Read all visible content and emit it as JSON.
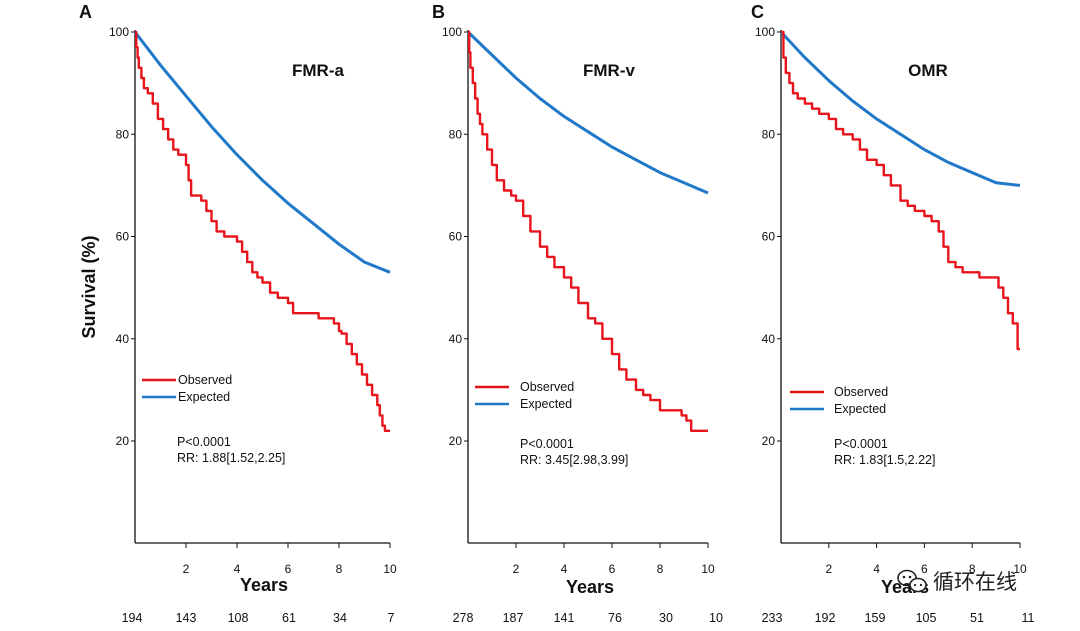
{
  "colors": {
    "observed": "#e8141c",
    "expected": "#1f78c8",
    "axis": "#111111"
  },
  "figure": {
    "y_axis_label": "Survival (%)",
    "watermark": "循环在线"
  },
  "chart_data": [
    {
      "type": "line",
      "panel_letter": "A",
      "title": "FMR-a",
      "xlabel": "Years",
      "ylabel": "Survival (%)",
      "xlim": [
        0,
        10
      ],
      "ylim": [
        0,
        100
      ],
      "x_ticks": [
        2,
        4,
        6,
        8,
        10
      ],
      "y_ticks": [
        20,
        40,
        60,
        80,
        100
      ],
      "legend": [
        "Observed",
        "Expected"
      ],
      "p_value": "P<0.0001",
      "rr": "RR: 1.88[1.52,2.25]",
      "at_risk": [
        "194",
        "143",
        "108",
        "61",
        "34",
        "7"
      ],
      "series": [
        {
          "name": "Observed",
          "x": [
            0,
            0.05,
            0.1,
            0.15,
            0.25,
            0.35,
            0.5,
            0.7,
            0.9,
            1.1,
            1.3,
            1.5,
            1.7,
            2.0,
            2.1,
            2.2,
            2.6,
            2.8,
            3.0,
            3.2,
            3.5,
            3.8,
            4.0,
            4.2,
            4.4,
            4.6,
            4.8,
            5.0,
            5.3,
            5.6,
            6.0,
            6.2,
            6.6,
            7.0,
            7.2,
            7.5,
            7.8,
            8.0,
            8.1,
            8.3,
            8.5,
            8.7,
            8.9,
            9.1,
            9.3,
            9.5,
            9.6,
            9.7,
            9.8,
            10.0
          ],
          "values": [
            100,
            97,
            95,
            93,
            91,
            89,
            88,
            86,
            83,
            81,
            79,
            77,
            76,
            74,
            71,
            68,
            67,
            65,
            63,
            61,
            60,
            60,
            59,
            57,
            55,
            53,
            52,
            51,
            49,
            48,
            47,
            45,
            45,
            45,
            44,
            44,
            43,
            41.5,
            41,
            39,
            37,
            35,
            33,
            31,
            29,
            27,
            25,
            23,
            22,
            22
          ]
        },
        {
          "name": "Expected",
          "x": [
            0,
            1,
            2,
            3,
            4,
            5,
            6,
            7,
            8,
            9,
            10
          ],
          "values": [
            100,
            93.5,
            87.5,
            81.5,
            76,
            71,
            66.5,
            62.5,
            58.5,
            55,
            53
          ]
        }
      ]
    },
    {
      "type": "line",
      "panel_letter": "B",
      "title": "FMR-v",
      "xlabel": "Years",
      "ylabel": "",
      "xlim": [
        0,
        10
      ],
      "ylim": [
        0,
        100
      ],
      "x_ticks": [
        2,
        4,
        6,
        8,
        10
      ],
      "y_ticks": [
        20,
        40,
        60,
        80,
        100
      ],
      "legend": [
        "Observed",
        "Expected"
      ],
      "p_value": "P<0.0001",
      "rr": "RR: 3.45[2.98,3.99]",
      "at_risk": [
        "278",
        "187",
        "141",
        "76",
        "30",
        "10"
      ],
      "series": [
        {
          "name": "Observed",
          "x": [
            0,
            0.05,
            0.1,
            0.2,
            0.3,
            0.4,
            0.5,
            0.6,
            0.8,
            1.0,
            1.2,
            1.5,
            1.8,
            2.0,
            2.3,
            2.6,
            3.0,
            3.3,
            3.6,
            4.0,
            4.3,
            4.6,
            5.0,
            5.3,
            5.6,
            6.0,
            6.3,
            6.6,
            7.0,
            7.3,
            7.6,
            8.0,
            8.3,
            8.6,
            8.9,
            9.1,
            9.3,
            9.5,
            10.0
          ],
          "values": [
            100,
            96,
            93,
            90,
            87,
            84,
            82,
            80,
            77,
            74,
            71,
            69,
            68,
            67,
            64,
            61,
            58,
            56,
            54,
            52,
            50,
            47,
            44,
            43,
            40,
            37,
            34,
            32,
            30,
            29,
            28,
            26,
            26,
            26,
            25,
            24,
            22,
            22,
            22
          ]
        },
        {
          "name": "Expected",
          "x": [
            0,
            1,
            2,
            3,
            4,
            5,
            6,
            7,
            8,
            9,
            10
          ],
          "values": [
            100,
            95.5,
            91,
            87,
            83.5,
            80.5,
            77.5,
            75,
            72.5,
            70.5,
            68.5
          ]
        }
      ]
    },
    {
      "type": "line",
      "panel_letter": "C",
      "title": "OMR",
      "xlabel": "Years",
      "ylabel": "",
      "xlim": [
        0,
        10
      ],
      "ylim": [
        0,
        100
      ],
      "x_ticks": [
        2,
        4,
        6,
        8,
        10
      ],
      "y_ticks": [
        20,
        40,
        60,
        80,
        100
      ],
      "legend": [
        "Observed",
        "Expected"
      ],
      "p_value": "P<0.0001",
      "rr": "RR: 1.83[1.5,2.22]",
      "at_risk": [
        "233",
        "192",
        "159",
        "105",
        "51",
        "11"
      ],
      "series": [
        {
          "name": "Observed",
          "x": [
            0,
            0.1,
            0.2,
            0.35,
            0.5,
            0.7,
            1.0,
            1.3,
            1.6,
            2.0,
            2.3,
            2.6,
            3.0,
            3.3,
            3.6,
            4.0,
            4.3,
            4.6,
            5.0,
            5.3,
            5.6,
            6.0,
            6.3,
            6.6,
            6.8,
            7.0,
            7.3,
            7.6,
            8.0,
            8.3,
            8.6,
            8.9,
            9.1,
            9.3,
            9.5,
            9.7,
            9.9,
            10.0
          ],
          "values": [
            100,
            95,
            92,
            90,
            88,
            87,
            86,
            85,
            84,
            83,
            81,
            80,
            79,
            77,
            75,
            74,
            72,
            70,
            67,
            66,
            65,
            64,
            63,
            61,
            58,
            55,
            54,
            53,
            53,
            52,
            52,
            52,
            50,
            48,
            45,
            43,
            38,
            38
          ]
        },
        {
          "name": "Expected",
          "x": [
            0,
            1,
            2,
            3,
            4,
            5,
            6,
            7,
            8,
            9,
            10
          ],
          "values": [
            100,
            95,
            90.5,
            86.5,
            83,
            80,
            77,
            74.5,
            72.5,
            70.5,
            70
          ]
        }
      ]
    }
  ]
}
